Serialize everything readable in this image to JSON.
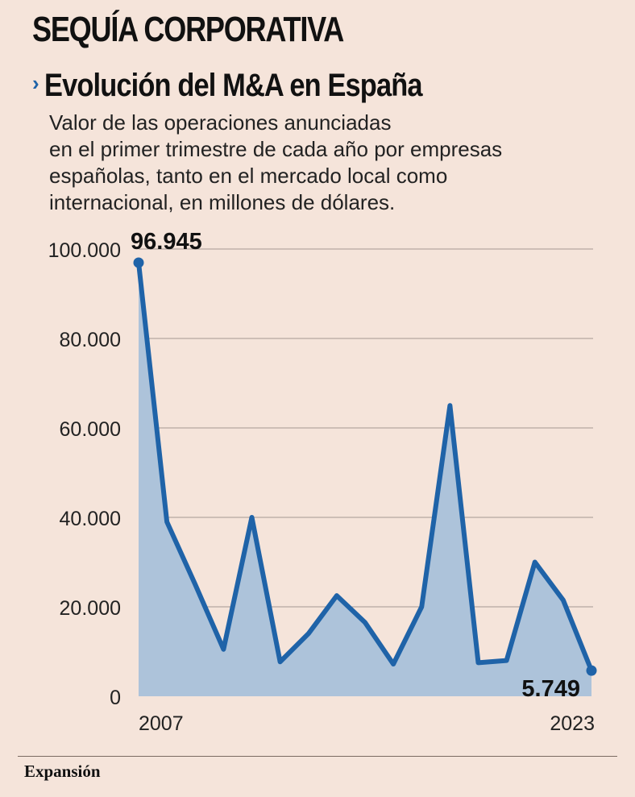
{
  "header": {
    "kicker": "SEQUÍA CORPORATIVA",
    "title": "Evolución del M&A en España",
    "subtitle_lines": [
      "Valor de las operaciones anunciadas",
      "en el primer trimestre de cada año por empresas",
      "españolas, tanto en el mercado local como",
      "internacional, en millones de dólares."
    ]
  },
  "chart_data": {
    "type": "area",
    "x": [
      2007,
      2008,
      2009,
      2010,
      2011,
      2012,
      2013,
      2014,
      2015,
      2016,
      2017,
      2018,
      2019,
      2020,
      2021,
      2022,
      2023
    ],
    "values": [
      96945,
      39000,
      25000,
      10500,
      40000,
      7700,
      14000,
      22500,
      16500,
      7200,
      20000,
      65000,
      7500,
      8000,
      30000,
      21500,
      5749
    ],
    "ylim": [
      0,
      100000
    ],
    "yticks": [
      0,
      20000,
      40000,
      60000,
      80000,
      100000
    ],
    "ytick_labels": [
      "0",
      "20.000",
      "40.000",
      "60.000",
      "80.000",
      "100.000"
    ],
    "xtick_labels": [
      "2007",
      "2023"
    ],
    "annotations": [
      {
        "index": 0,
        "label": "96.945"
      },
      {
        "index": 16,
        "label": "5.749"
      }
    ],
    "grid": true,
    "colors": {
      "line": "#1f63a8",
      "fill": "#adc3da",
      "grid": "#a59891"
    }
  },
  "footer": {
    "brand": "Expansión"
  }
}
